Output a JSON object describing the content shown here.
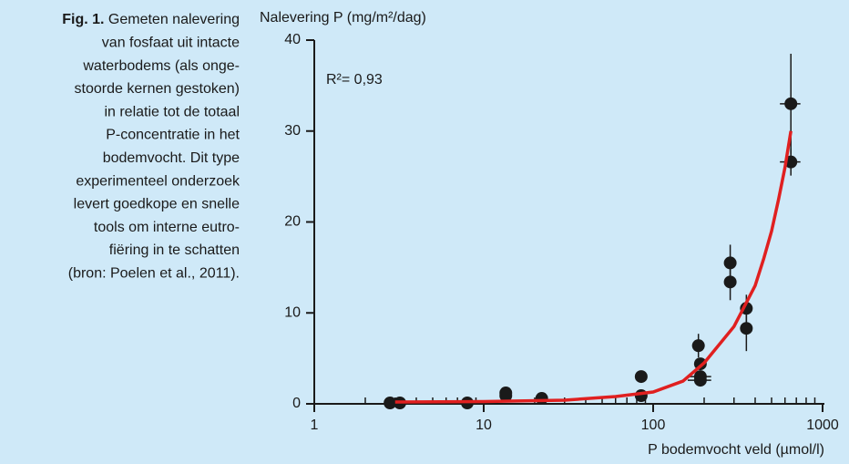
{
  "caption": {
    "label": "Fig. 1.",
    "lines": [
      "Gemeten nalevering",
      "van fosfaat uit intacte",
      "waterbodems (als onge-",
      "stoorde kernen gestoken)",
      "in relatie tot de totaal",
      "P-concentratie in het",
      "bodemvocht. Dit type",
      "experimenteel onderzoek",
      "levert goedkope en snelle",
      "tools om interne eutro-",
      "fiëring in te schatten",
      "(bron: Poelen et al., 2011)."
    ]
  },
  "chart_data": {
    "type": "scatter",
    "y_label": "Nalevering P (mg/m²/dag)",
    "x_label": "P bodemvocht veld (µmol/l)",
    "annotation": "R²= 0,93",
    "xscale": "log",
    "xlim": [
      1,
      1000
    ],
    "xticks": [
      1,
      10,
      100,
      1000
    ],
    "xminorticks": [
      2,
      3,
      4,
      5,
      6,
      7,
      8,
      9,
      20,
      30,
      40,
      50,
      60,
      70,
      80,
      90,
      200,
      300,
      400,
      500,
      600,
      700,
      800,
      900
    ],
    "ylim": [
      0,
      40
    ],
    "yticks": [
      0,
      10,
      20,
      30,
      40
    ],
    "series": [
      {
        "style": "points",
        "color": "#1a1a1a",
        "x": [
          2.8,
          3.2,
          8,
          13.5,
          13.5,
          22,
          85,
          85,
          185,
          190,
          190,
          190,
          285,
          285,
          355,
          355,
          650,
          650
        ],
        "values": [
          0.1,
          0.1,
          0.1,
          1.2,
          0.9,
          0.6,
          3.0,
          0.9,
          6.4,
          4.4,
          3.0,
          2.6,
          15.5,
          13.4,
          10.5,
          8.3,
          33,
          26.6
        ],
        "yerr": [
          null,
          null,
          null,
          null,
          null,
          null,
          null,
          null,
          1.3,
          null,
          null,
          null,
          2,
          2,
          1.5,
          2.5,
          5.5,
          1.5
        ],
        "xerr": [
          null,
          null,
          null,
          null,
          null,
          null,
          null,
          null,
          null,
          null,
          30,
          30,
          null,
          null,
          null,
          null,
          90,
          90
        ]
      },
      {
        "style": "line",
        "color": "#e02020",
        "x": [
          3,
          10,
          30,
          60,
          100,
          150,
          200,
          300,
          400,
          450,
          500,
          550,
          600,
          650
        ],
        "values": [
          0.2,
          0.25,
          0.4,
          0.8,
          1.3,
          2.5,
          4.5,
          8.5,
          13,
          16,
          19,
          22.5,
          26,
          30
        ]
      }
    ]
  }
}
